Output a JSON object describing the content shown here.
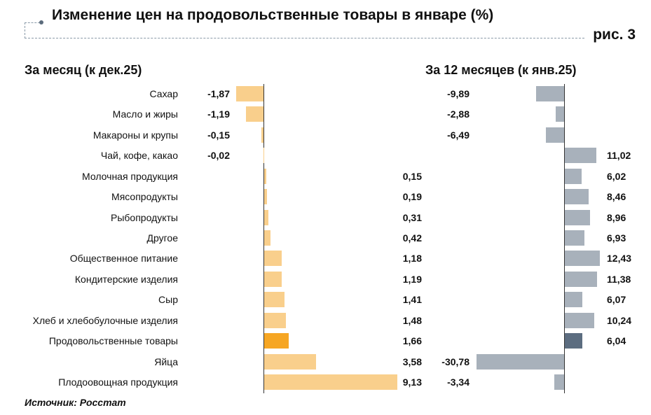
{
  "title": "Изменение цен на продовольственные товары в январе (%)",
  "figure_label": "рис. 3",
  "source": "Источник: Росстат",
  "chart_data": [
    {
      "type": "bar",
      "orientation": "horizontal",
      "title": "За месяц (к дек.25)",
      "categories": [
        "Сахар",
        "Масло и жиры",
        "Макароны и крупы",
        "Чай, кофе, какао",
        "Молочная продукция",
        "Мясопродукты",
        "Рыбопродукты",
        "Другое",
        "Общественное питание",
        "Кондитерские изделия",
        "Сыр",
        "Хлеб и хлебобулочные изделия",
        "Продовольственные товары",
        "Яйца",
        "Плодоовощная продукция"
      ],
      "values": [
        -1.87,
        -1.19,
        -0.15,
        -0.02,
        0.15,
        0.19,
        0.31,
        0.42,
        1.18,
        1.19,
        1.41,
        1.48,
        1.66,
        3.58,
        9.13
      ],
      "labels": [
        "-1,87",
        "-1,19",
        "-0,15",
        "-0,02",
        "0,15",
        "0,19",
        "0,31",
        "0,42",
        "1,18",
        "1,19",
        "1,41",
        "1,48",
        "1,66",
        "3,58",
        "9,13"
      ],
      "highlight_index": 12,
      "colors": {
        "bar": "#f9cf8c",
        "highlight": "#f6a623"
      }
    },
    {
      "type": "bar",
      "orientation": "horizontal",
      "title": "За 12 месяцев (к янв.25)",
      "categories": [
        "Сахар",
        "Масло и жиры",
        "Макароны и крупы",
        "Чай, кофе, какао",
        "Молочная продукция",
        "Мясопродукты",
        "Рыбопродукты",
        "Другое",
        "Общественное питание",
        "Кондитерские изделия",
        "Сыр",
        "Хлеб и хлебобулочные изделия",
        "Продовольственные товары",
        "Яйца",
        "Плодоовощная продукция"
      ],
      "values": [
        -9.89,
        -2.88,
        -6.49,
        11.02,
        6.02,
        8.46,
        8.96,
        6.93,
        12.43,
        11.38,
        6.07,
        10.24,
        6.04,
        -30.78,
        -3.34
      ],
      "labels": [
        "-9,89",
        "-2,88",
        "-6,49",
        "11,02",
        "6,02",
        "8,46",
        "8,96",
        "6,93",
        "12,43",
        "11,38",
        "6,07",
        "10,24",
        "6,04",
        "-30,78",
        "-3,34"
      ],
      "highlight_index": 12,
      "colors": {
        "bar": "#a8b1bb",
        "highlight": "#5c6d80"
      }
    }
  ]
}
